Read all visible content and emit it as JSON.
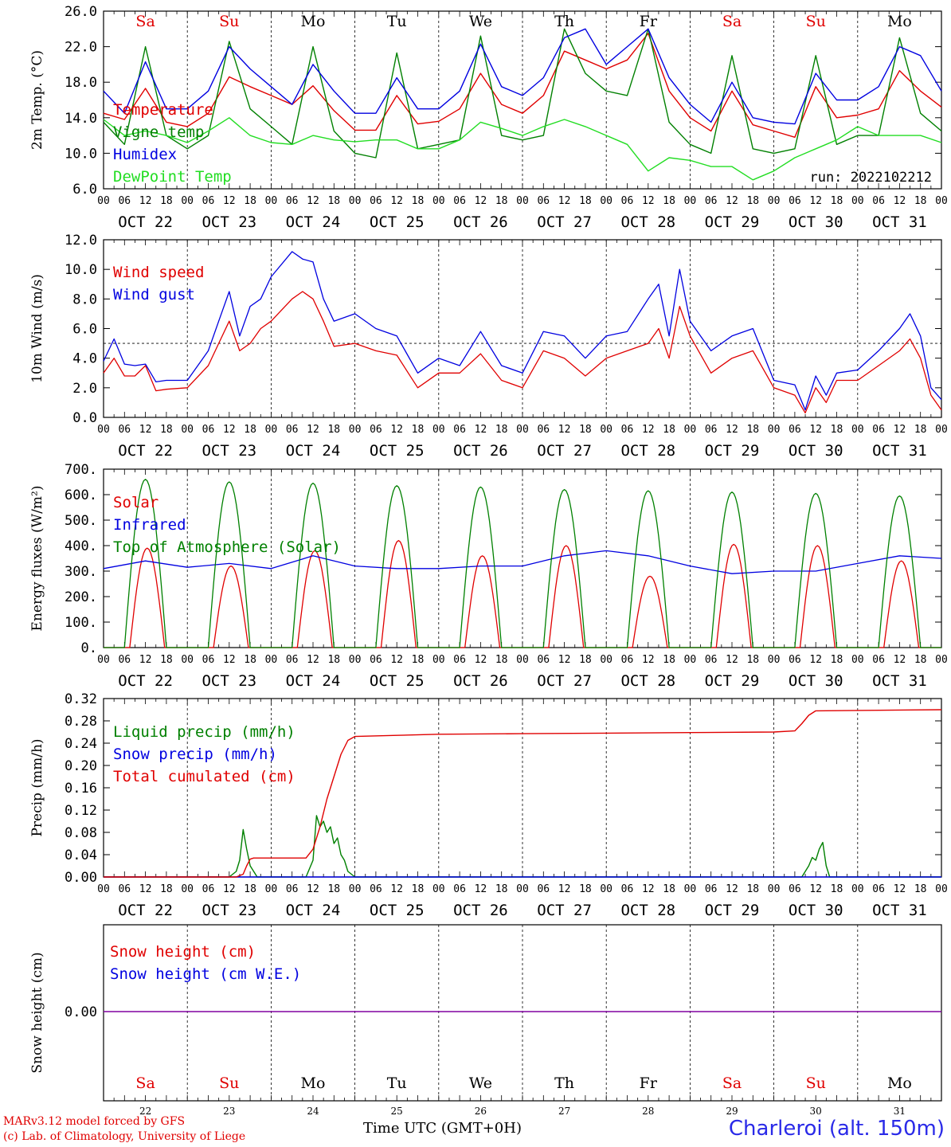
{
  "colors": {
    "red": "#e00000",
    "green": "#008000",
    "blue": "#0000e0",
    "lightgreen": "#22dd22",
    "purple": "#8000a0"
  },
  "footer": {
    "model_line": "MARv3.12 model forced by GFS",
    "credit_line": "(c) Lab. of Climatology, University of Liege",
    "x_label": "Time UTC (GMT+0H)",
    "station": "Charleroi (alt. 150m)"
  },
  "day_names": [
    "Sa",
    "Su",
    "Mo",
    "Tu",
    "We",
    "Th",
    "Fr",
    "Sa",
    "Su",
    "Mo"
  ],
  "weekend_days": [
    0,
    1,
    7,
    8
  ],
  "date_labels": [
    "OCT 22",
    "OCT 23",
    "OCT 24",
    "OCT 25",
    "OCT 26",
    "OCT 27",
    "OCT 28",
    "OCT 29",
    "OCT 30",
    "OCT 31"
  ],
  "day_numbers": [
    "22",
    "23",
    "24",
    "25",
    "26",
    "27",
    "28",
    "29",
    "30",
    "31"
  ],
  "hour_labels": [
    "00",
    "06",
    "12",
    "18"
  ],
  "chart_data": [
    {
      "type": "line",
      "ylabel": "2m Temp. (°C)",
      "ylim": [
        6,
        26
      ],
      "yticks": [
        "6.0",
        "10.0",
        "14.0",
        "18.0",
        "22.0",
        "26.0"
      ],
      "annotation": "run: 2022102212",
      "x_unit": "hours since OCT 22 00 UTC",
      "series": [
        {
          "name": "Temperature",
          "color": "red",
          "x": [
            0,
            6,
            12,
            18,
            24,
            30,
            36,
            42,
            48,
            54,
            60,
            66,
            72,
            78,
            84,
            90,
            96,
            102,
            108,
            114,
            120,
            126,
            132,
            138,
            144,
            150,
            156,
            162,
            168,
            174,
            180,
            186,
            192,
            198,
            204,
            210,
            216,
            222,
            228,
            234,
            240
          ],
          "y": [
            14.5,
            13.8,
            17.3,
            13.5,
            13.0,
            14.5,
            18.6,
            17.5,
            16.5,
            15.5,
            17.6,
            14.8,
            12.6,
            12.6,
            16.5,
            13.3,
            13.6,
            15.0,
            19.0,
            15.5,
            14.5,
            16.5,
            21.5,
            20.5,
            19.5,
            20.5,
            23.5,
            17.0,
            14.0,
            12.5,
            17.0,
            13.2,
            12.5,
            11.8,
            17.5,
            14.0,
            14.3,
            15.0,
            19.3,
            17.0,
            15.2
          ]
        },
        {
          "name": "Vigne temp",
          "color": "green",
          "x": [
            0,
            6,
            12,
            18,
            24,
            30,
            36,
            42,
            48,
            54,
            60,
            66,
            72,
            78,
            84,
            90,
            96,
            102,
            108,
            114,
            120,
            126,
            132,
            138,
            144,
            150,
            156,
            162,
            168,
            174,
            180,
            186,
            192,
            198,
            204,
            210,
            216,
            222,
            228,
            234,
            240
          ],
          "y": [
            13.5,
            11.0,
            22.0,
            12.0,
            10.5,
            12.0,
            22.6,
            15.0,
            13.0,
            11.0,
            22.0,
            12.5,
            10.0,
            9.5,
            21.3,
            10.5,
            11.0,
            11.5,
            23.2,
            12.0,
            11.5,
            12.0,
            24.0,
            19.0,
            17.0,
            16.5,
            24.0,
            13.5,
            11.0,
            10.0,
            21.0,
            10.5,
            10.0,
            10.5,
            21.0,
            11.0,
            12.0,
            12.0,
            23.0,
            14.5,
            12.5
          ]
        },
        {
          "name": "Humidex",
          "color": "blue",
          "x": [
            0,
            6,
            12,
            18,
            24,
            30,
            36,
            42,
            48,
            54,
            60,
            66,
            72,
            78,
            84,
            90,
            96,
            102,
            108,
            114,
            120,
            126,
            132,
            138,
            144,
            150,
            156,
            162,
            168,
            174,
            180,
            186,
            192,
            198,
            204,
            210,
            216,
            222,
            228,
            234,
            240
          ],
          "y": [
            17.0,
            14.5,
            20.3,
            15.0,
            15.0,
            17.0,
            22.0,
            19.5,
            17.5,
            15.5,
            20.0,
            17.0,
            14.5,
            14.5,
            18.5,
            15.0,
            15.0,
            17.0,
            22.3,
            17.5,
            16.5,
            18.5,
            23.0,
            24.0,
            20.0,
            22.0,
            24.0,
            18.5,
            15.5,
            13.5,
            18.0,
            14.0,
            13.5,
            13.3,
            19.0,
            16.0,
            16.0,
            17.5,
            22.0,
            21.0,
            17.0
          ]
        },
        {
          "name": "DewPoint Temp",
          "color": "lightgreen",
          "x": [
            0,
            6,
            12,
            18,
            24,
            30,
            36,
            42,
            48,
            54,
            60,
            66,
            72,
            78,
            84,
            90,
            96,
            102,
            108,
            114,
            120,
            126,
            132,
            138,
            144,
            150,
            156,
            162,
            168,
            174,
            180,
            186,
            192,
            198,
            204,
            210,
            216,
            222,
            228,
            234,
            240
          ],
          "y": [
            13.8,
            12.0,
            12.5,
            12.0,
            11.2,
            12.5,
            14.0,
            12.0,
            11.2,
            11.0,
            12.0,
            11.5,
            11.3,
            11.5,
            11.5,
            10.5,
            10.5,
            11.5,
            13.5,
            12.8,
            12.0,
            13.0,
            13.8,
            13.0,
            12.0,
            11.0,
            8.0,
            9.5,
            9.2,
            8.5,
            8.5,
            7.0,
            8.0,
            9.5,
            10.5,
            11.5,
            13.0,
            12.0,
            12.0,
            12.0,
            11.2
          ]
        }
      ]
    },
    {
      "type": "line",
      "ylabel": "10m Wind (m/s)",
      "ylim": [
        0,
        12
      ],
      "yticks": [
        "0.0",
        "2.0",
        "4.0",
        "6.0",
        "8.0",
        "10.0",
        "12.0"
      ],
      "ref_line": 5,
      "x_unit": "hours since OCT 22 00 UTC",
      "series": [
        {
          "name": "Wind speed",
          "color": "red",
          "x": [
            0,
            3,
            6,
            9,
            12,
            15,
            18,
            24,
            30,
            33,
            36,
            39,
            42,
            45,
            48,
            54,
            57,
            60,
            63,
            66,
            72,
            78,
            84,
            90,
            96,
            102,
            108,
            114,
            120,
            126,
            132,
            138,
            144,
            150,
            156,
            159,
            162,
            165,
            168,
            174,
            180,
            186,
            192,
            198,
            201,
            204,
            207,
            210,
            216,
            222,
            228,
            231,
            234,
            237,
            240
          ],
          "y": [
            3.0,
            4.0,
            2.8,
            2.8,
            3.5,
            1.8,
            1.9,
            2.0,
            3.5,
            5.0,
            6.5,
            4.5,
            5.0,
            6.0,
            6.5,
            8.0,
            8.5,
            8.0,
            6.5,
            4.8,
            5.0,
            4.5,
            4.2,
            2.0,
            3.0,
            3.0,
            4.3,
            2.5,
            2.0,
            4.5,
            4.0,
            2.8,
            4.0,
            4.5,
            5.0,
            6.0,
            4.0,
            7.5,
            5.5,
            3.0,
            4.0,
            4.5,
            2.0,
            1.5,
            0.3,
            2.0,
            1.0,
            2.5,
            2.5,
            3.5,
            4.5,
            5.3,
            4.0,
            1.5,
            0.5
          ]
        },
        {
          "name": "Wind gust",
          "color": "blue",
          "x": [
            0,
            3,
            6,
            9,
            12,
            15,
            18,
            24,
            30,
            33,
            36,
            39,
            42,
            45,
            48,
            54,
            57,
            60,
            63,
            66,
            72,
            78,
            84,
            90,
            96,
            102,
            108,
            114,
            120,
            126,
            132,
            138,
            144,
            150,
            156,
            159,
            162,
            165,
            168,
            174,
            180,
            186,
            192,
            198,
            201,
            204,
            207,
            210,
            216,
            222,
            228,
            231,
            234,
            237,
            240
          ],
          "y": [
            3.8,
            5.3,
            3.6,
            3.5,
            3.6,
            2.4,
            2.5,
            2.5,
            4.5,
            6.5,
            8.5,
            5.5,
            7.5,
            8.0,
            9.5,
            11.2,
            10.7,
            10.5,
            8.0,
            6.5,
            7.0,
            6.0,
            5.5,
            3.0,
            4.0,
            3.5,
            5.8,
            3.5,
            3.0,
            5.8,
            5.5,
            4.0,
            5.5,
            5.8,
            8.0,
            9.0,
            5.5,
            10.0,
            6.5,
            4.5,
            5.5,
            6.0,
            2.5,
            2.2,
            0.5,
            2.8,
            1.5,
            3.0,
            3.2,
            4.5,
            6.0,
            7.0,
            5.5,
            2.0,
            1.2
          ]
        }
      ]
    },
    {
      "type": "line",
      "ylabel": "Energy fluxes (W/m²)",
      "ylim": [
        0,
        700
      ],
      "yticks": [
        "0.",
        "100.",
        "200.",
        "300.",
        "400.",
        "500.",
        "600.",
        "700."
      ],
      "x_unit": "hours since OCT 22 00 UTC",
      "series": [
        {
          "name": "Solar",
          "color": "red",
          "peaks": [
            390,
            320,
            380,
            420,
            360,
            400,
            280,
            405,
            400,
            340
          ],
          "peak_hour": 12.5,
          "half_width": 5
        },
        {
          "name": "Infrared",
          "color": "blue",
          "x": [
            0,
            12,
            24,
            36,
            48,
            60,
            72,
            84,
            96,
            108,
            120,
            132,
            144,
            156,
            168,
            180,
            192,
            204,
            216,
            228,
            240
          ],
          "y": [
            310,
            340,
            315,
            330,
            310,
            360,
            320,
            310,
            310,
            320,
            320,
            360,
            380,
            360,
            320,
            290,
            300,
            300,
            330,
            360,
            350
          ]
        },
        {
          "name": "Top of Atmosphere (Solar)",
          "color": "green",
          "peaks": [
            660,
            650,
            645,
            635,
            630,
            620,
            615,
            610,
            605,
            595
          ],
          "peak_hour": 12,
          "half_width": 6
        }
      ]
    },
    {
      "type": "line",
      "ylabel": "Precip (mm/h)",
      "ylim": [
        0,
        0.32
      ],
      "yticks": [
        "0.00",
        "0.04",
        "0.08",
        "0.12",
        "0.16",
        "0.20",
        "0.24",
        "0.28",
        "0.32"
      ],
      "x_unit": "hours since OCT 22 00 UTC",
      "series": [
        {
          "name": "Liquid precip (mm/h)",
          "color": "green",
          "x": [
            0,
            36,
            38,
            39,
            40,
            41,
            42,
            43,
            44,
            58,
            60,
            61,
            62,
            63,
            64,
            65,
            66,
            67,
            68,
            69,
            70,
            72,
            200,
            202,
            203,
            204,
            205,
            206,
            207,
            208,
            240
          ],
          "y": [
            0,
            0,
            0.01,
            0.03,
            0.085,
            0.05,
            0.02,
            0.01,
            0,
            0,
            0.03,
            0.11,
            0.09,
            0.1,
            0.08,
            0.09,
            0.06,
            0.07,
            0.04,
            0.03,
            0.01,
            0,
            0,
            0.02,
            0.035,
            0.03,
            0.05,
            0.062,
            0.02,
            0,
            0
          ]
        },
        {
          "name": "Snow precip (mm/h)",
          "color": "blue",
          "x": [
            0,
            240
          ],
          "y": [
            0,
            0
          ]
        },
        {
          "name": "Total cumulated (cm)",
          "color": "red",
          "x": [
            0,
            38,
            40,
            41,
            42,
            43,
            58,
            60,
            62,
            64,
            66,
            68,
            70,
            72,
            84,
            96,
            120,
            144,
            168,
            192,
            198,
            200,
            202,
            204,
            240
          ],
          "y": [
            0,
            0,
            0.005,
            0.02,
            0.032,
            0.034,
            0.034,
            0.05,
            0.09,
            0.14,
            0.18,
            0.22,
            0.245,
            0.252,
            0.254,
            0.256,
            0.257,
            0.258,
            0.259,
            0.26,
            0.262,
            0.275,
            0.29,
            0.298,
            0.3
          ]
        }
      ]
    },
    {
      "type": "line",
      "ylabel": "Snow height (cm)",
      "yticks": [
        "0.00"
      ],
      "x_unit": "hours since OCT 22 00 UTC",
      "series": [
        {
          "name": "Snow height (cm)",
          "color": "red",
          "x": [
            0,
            240
          ],
          "y": [
            0,
            0
          ]
        },
        {
          "name": "Snow height (cm W.E.)",
          "color": "blue",
          "x": [
            0,
            240
          ],
          "y": [
            0,
            0
          ]
        }
      ]
    }
  ]
}
